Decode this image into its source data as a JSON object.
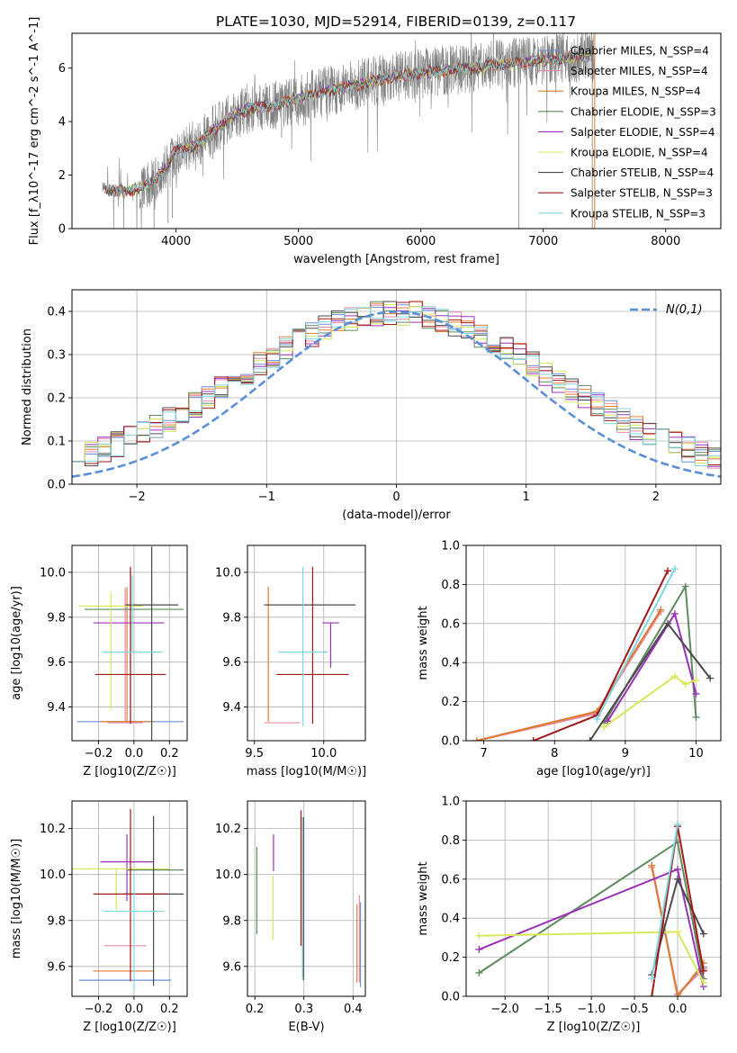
{
  "figure_title": "PLATE=1030, MJD=52914, FIBERID=0139, z=0.117",
  "colors": {
    "Chabrier MILES": "#6a8fdc",
    "Salpeter MILES": "#e88aa8",
    "Kroupa MILES": "#e07b2c",
    "Chabrier ELODIE": "#5e8a5e",
    "Salpeter ELODIE": "#9b30b8",
    "Kroupa ELODIE": "#d6e85a",
    "Chabrier STELIB": "#4a4a4a",
    "Salpeter STELIB": "#a01818",
    "Kroupa STELIB": "#7ed6e0",
    "data": "#808080",
    "normal": "#5b8fd8",
    "grid": "#b0b0b0"
  },
  "chart_data": [
    {
      "id": "spectrum",
      "type": "line",
      "title": "PLATE=1030, MJD=52914, FIBERID=0139, z=0.117",
      "xlabel": "wavelength [Angstrom, rest frame]",
      "ylabel": "Flux [f_λ10^-17 erg cm^-2 s^-1 A^-1]",
      "xlim": [
        3150,
        8450
      ],
      "ylim": [
        0,
        7.3
      ],
      "xticks": [
        4000,
        5000,
        6000,
        7000,
        8000
      ],
      "yticks": [
        0,
        2,
        4,
        6
      ],
      "grid": false,
      "legend_position": "lower-right",
      "data_envelope": {
        "x": [
          3400,
          3500,
          3600,
          3700,
          3800,
          3900,
          4000,
          4100,
          4200,
          4300,
          4400,
          4500,
          4600,
          4800,
          5000,
          5200,
          5400,
          5600,
          5800,
          6000,
          6200,
          6400,
          6600,
          6800,
          7000,
          7200,
          7400
        ],
        "y": [
          1.5,
          1.4,
          1.4,
          1.5,
          1.7,
          2.2,
          2.9,
          3.0,
          3.2,
          3.7,
          4.0,
          4.3,
          4.5,
          4.6,
          4.9,
          5.1,
          5.3,
          5.5,
          5.7,
          5.8,
          5.9,
          6.0,
          6.1,
          6.2,
          6.3,
          6.4,
          6.4
        ]
      },
      "legend": [
        {
          "name": "Chabrier MILES, N_SSP=4"
        },
        {
          "name": "Salpeter MILES, N_SSP=4"
        },
        {
          "name": "Kroupa MILES, N_SSP=4"
        },
        {
          "name": "Chabrier ELODIE, N_SSP=3"
        },
        {
          "name": "Salpeter ELODIE, N_SSP=4"
        },
        {
          "name": "Kroupa ELODIE, N_SSP=4"
        },
        {
          "name": "Chabrier STELIB, N_SSP=4"
        },
        {
          "name": "Salpeter STELIB, N_SSP=3"
        },
        {
          "name": "Kroupa STELIB, N_SSP=3"
        }
      ]
    },
    {
      "id": "residuals",
      "type": "area",
      "xlabel": "(data-model)/error",
      "ylabel": "Normed distribution",
      "xlim": [
        -2.5,
        2.5
      ],
      "ylim": [
        0,
        0.45
      ],
      "xticks": [
        -2,
        -1,
        0,
        1,
        2
      ],
      "yticks": [
        0.0,
        0.1,
        0.2,
        0.3,
        0.4
      ],
      "grid": true,
      "legend": "N(0,1)",
      "legend_position": "top-right",
      "bin_width": 0.1
    },
    {
      "id": "age-vs-Z",
      "type": "scatter",
      "xlabel": "Z [log10(Z/Z☉)]",
      "ylabel": "age [log10(age/yr)]",
      "xlim": [
        -0.35,
        0.3
      ],
      "ylim": [
        9.25,
        10.12
      ],
      "xticks": [
        -0.2,
        0.0,
        0.2
      ],
      "yticks": [
        9.4,
        9.6,
        9.8,
        10.0
      ],
      "grid": true,
      "points": [
        {
          "model": "Chabrier MILES",
          "x": -0.02,
          "y": 9.335,
          "xerr": 0.3,
          "yerr_lo": 0.0,
          "yerr_hi": 0.67
        },
        {
          "model": "Salpeter MILES",
          "x": -0.05,
          "y": 9.33,
          "xerr": 0.1,
          "yerr_lo": 0.0,
          "yerr_hi": 0.6
        },
        {
          "model": "Kroupa MILES",
          "x": -0.04,
          "y": 9.335,
          "xerr": 0.15,
          "yerr_lo": 0.0,
          "yerr_hi": 0.6
        },
        {
          "model": "Chabrier ELODIE",
          "x": 0.0,
          "y": 9.835,
          "xerr": 0.28,
          "yerr_lo": 0.0,
          "yerr_hi": 0.0
        },
        {
          "model": "Salpeter ELODIE",
          "x": -0.03,
          "y": 9.775,
          "xerr": 0.2,
          "yerr_lo": 0.0,
          "yerr_hi": 0.0
        },
        {
          "model": "Kroupa ELODIE",
          "x": -0.13,
          "y": 9.85,
          "xerr": 0.18,
          "yerr_lo": 0.46,
          "yerr_hi": 0.06
        },
        {
          "model": "Chabrier STELIB",
          "x": 0.1,
          "y": 9.855,
          "xerr": 0.15,
          "yerr_lo": 0.65,
          "yerr_hi": 0.26
        },
        {
          "model": "Salpeter STELIB",
          "x": -0.02,
          "y": 9.545,
          "xerr": 0.2,
          "yerr_lo": 0.22,
          "yerr_hi": 0.48
        },
        {
          "model": "Kroupa STELIB",
          "x": -0.01,
          "y": 9.645,
          "xerr": 0.17,
          "yerr_lo": 0.0,
          "yerr_hi": 0.34
        }
      ]
    },
    {
      "id": "age-vs-mass",
      "type": "scatter",
      "xlabel": "mass [log10(M/M☉)]",
      "ylabel": "",
      "xlim": [
        9.45,
        10.3
      ],
      "ylim": [
        9.25,
        10.12
      ],
      "xticks": [
        9.5,
        10.0
      ],
      "yticks": [
        9.4,
        9.6,
        9.8,
        10.0
      ],
      "grid": true,
      "points": [
        {
          "model": "Chabrier MILES",
          "x": 9.55,
          "y": 9.335,
          "xerr": 0.0,
          "yerr_lo": 0.0,
          "yerr_hi": 0.0
        },
        {
          "model": "Salpeter MILES",
          "x": 9.7,
          "y": 9.33,
          "xerr": 0.13,
          "yerr_lo": 0.0,
          "yerr_hi": 0.0
        },
        {
          "model": "Kroupa MILES",
          "x": 9.6,
          "y": 9.335,
          "xerr": 0.0,
          "yerr_lo": 0.0,
          "yerr_hi": 0.6
        },
        {
          "model": "Chabrier ELODIE",
          "x": 10.05,
          "y": 9.835,
          "xerr": 0.0,
          "yerr_lo": 0.0,
          "yerr_hi": 0.0
        },
        {
          "model": "Salpeter ELODIE",
          "x": 10.05,
          "y": 9.775,
          "xerr": 0.06,
          "yerr_lo": 0.2,
          "yerr_hi": 0.0
        },
        {
          "model": "Kroupa ELODIE",
          "x": 10.02,
          "y": 9.85,
          "xerr": 0.0,
          "yerr_lo": 0.0,
          "yerr_hi": 0.0
        },
        {
          "model": "Chabrier STELIB",
          "x": 9.9,
          "y": 9.855,
          "xerr": 0.33,
          "yerr_lo": 0.0,
          "yerr_hi": 0.0
        },
        {
          "model": "Salpeter STELIB",
          "x": 9.92,
          "y": 9.545,
          "xerr": 0.26,
          "yerr_lo": 0.22,
          "yerr_hi": 0.48
        },
        {
          "model": "Kroupa STELIB",
          "x": 9.85,
          "y": 9.645,
          "xerr": 0.18,
          "yerr_lo": 0.33,
          "yerr_hi": 0.38
        }
      ]
    },
    {
      "id": "weight-vs-age",
      "type": "line",
      "xlabel": "age [log10(age/yr)]",
      "ylabel": "mass weight",
      "xlim": [
        6.75,
        10.35
      ],
      "ylim": [
        0.0,
        1.0
      ],
      "xticks": [
        7,
        8,
        9,
        10
      ],
      "yticks": [
        0.0,
        0.2,
        0.4,
        0.6,
        0.8,
        1.0
      ],
      "grid": true,
      "series": [
        {
          "model": "Chabrier MILES",
          "x": [
            6.9,
            8.6,
            9.5
          ],
          "y": [
            0.0,
            0.15,
            0.67
          ]
        },
        {
          "model": "Salpeter MILES",
          "x": [
            6.9,
            8.6,
            9.5
          ],
          "y": [
            0.0,
            0.14,
            0.66
          ]
        },
        {
          "model": "Kroupa MILES",
          "x": [
            6.9,
            8.6,
            9.5
          ],
          "y": [
            0.0,
            0.15,
            0.67
          ]
        },
        {
          "model": "Chabrier ELODIE",
          "x": [
            8.7,
            9.85,
            10.0
          ],
          "y": [
            0.09,
            0.79,
            0.12
          ]
        },
        {
          "model": "Salpeter ELODIE",
          "x": [
            8.75,
            9.7,
            10.0
          ],
          "y": [
            0.1,
            0.65,
            0.24
          ]
        },
        {
          "model": "Kroupa ELODIE",
          "x": [
            8.7,
            9.7,
            9.85,
            10.0
          ],
          "y": [
            0.07,
            0.33,
            0.29,
            0.31
          ]
        },
        {
          "model": "Chabrier STELIB",
          "x": [
            8.5,
            9.6,
            10.2
          ],
          "y": [
            0.0,
            0.6,
            0.32
          ]
        },
        {
          "model": "Salpeter STELIB",
          "x": [
            7.7,
            8.6,
            9.6
          ],
          "y": [
            0.0,
            0.13,
            0.87
          ]
        },
        {
          "model": "Kroupa STELIB",
          "x": [
            8.6,
            9.7
          ],
          "y": [
            0.11,
            0.88
          ]
        }
      ]
    },
    {
      "id": "mass-vs-Z",
      "type": "scatter",
      "xlabel": "Z [log10(Z/Z☉)]",
      "ylabel": "mass [log10(M/M☉)]",
      "xlim": [
        -0.35,
        0.3
      ],
      "ylim": [
        9.47,
        10.32
      ],
      "xticks": [
        -0.2,
        0.0,
        0.2
      ],
      "yticks": [
        9.6,
        9.8,
        10.0,
        10.2
      ],
      "grid": true,
      "points": [
        {
          "model": "Chabrier MILES",
          "x": -0.05,
          "y": 9.54,
          "xerr": 0.26,
          "yerr_lo": 0.0,
          "yerr_hi": 0.0
        },
        {
          "model": "Salpeter MILES",
          "x": -0.05,
          "y": 9.69,
          "xerr": 0.12,
          "yerr_lo": 0.0,
          "yerr_hi": 0.0
        },
        {
          "model": "Kroupa MILES",
          "x": -0.06,
          "y": 9.58,
          "xerr": 0.17,
          "yerr_lo": 0.0,
          "yerr_hi": 0.0
        },
        {
          "model": "Chabrier ELODIE",
          "x": 0.12,
          "y": 10.02,
          "xerr": 0.16,
          "yerr_lo": 0.0,
          "yerr_hi": 0.0
        },
        {
          "model": "Salpeter ELODIE",
          "x": -0.04,
          "y": 10.055,
          "xerr": 0.15,
          "yerr_lo": 0.17,
          "yerr_hi": 0.12
        },
        {
          "model": "Kroupa ELODIE",
          "x": -0.1,
          "y": 10.025,
          "xerr": 0.3,
          "yerr_lo": 0.18,
          "yerr_hi": 0.0
        },
        {
          "model": "Chabrier STELIB",
          "x": 0.11,
          "y": 9.915,
          "xerr": 0.17,
          "yerr_lo": 0.4,
          "yerr_hi": 0.34
        },
        {
          "model": "Salpeter STELIB",
          "x": -0.02,
          "y": 9.915,
          "xerr": 0.21,
          "yerr_lo": 0.38,
          "yerr_hi": 0.37
        },
        {
          "model": "Kroupa STELIB",
          "x": 0.0,
          "y": 9.84,
          "xerr": 0.17,
          "yerr_lo": 0.34,
          "yerr_hi": 0.16
        }
      ]
    },
    {
      "id": "mass-vs-ebv",
      "type": "scatter",
      "xlabel": "E(B-V)",
      "ylabel": "",
      "xlim": [
        0.185,
        0.425
      ],
      "ylim": [
        9.47,
        10.32
      ],
      "xticks": [
        0.2,
        0.3,
        0.4
      ],
      "yticks": [
        9.6,
        9.8,
        10.0,
        10.2
      ],
      "grid": true,
      "points": [
        {
          "model": "Chabrier MILES",
          "x": 0.415,
          "y": 9.71,
          "xerr": 0.0,
          "yerr_lo": 0.2,
          "yerr_hi": 0.17
        },
        {
          "model": "Salpeter MILES",
          "x": 0.413,
          "y": 9.71,
          "xerr": 0.0,
          "yerr_lo": 0.18,
          "yerr_hi": 0.2
        },
        {
          "model": "Kroupa MILES",
          "x": 0.408,
          "y": 9.71,
          "xerr": 0.0,
          "yerr_lo": 0.18,
          "yerr_hi": 0.16
        },
        {
          "model": "Chabrier ELODIE",
          "x": 0.204,
          "y": 9.93,
          "xerr": 0.0,
          "yerr_lo": 0.19,
          "yerr_hi": 0.19
        },
        {
          "model": "Salpeter ELODIE",
          "x": 0.238,
          "y": 10.065,
          "xerr": 0.0,
          "yerr_lo": 0.05,
          "yerr_hi": 0.11
        },
        {
          "model": "Kroupa ELODIE",
          "x": 0.237,
          "y": 9.885,
          "xerr": 0.0,
          "yerr_lo": 0.17,
          "yerr_hi": 0.11
        },
        {
          "model": "Chabrier STELIB",
          "x": 0.299,
          "y": 9.9,
          "xerr": 0.0,
          "yerr_lo": 0.36,
          "yerr_hi": 0.35
        },
        {
          "model": "Salpeter STELIB",
          "x": 0.294,
          "y": 9.98,
          "xerr": 0.0,
          "yerr_lo": 0.29,
          "yerr_hi": 0.3
        },
        {
          "model": "Kroupa STELIB",
          "x": 0.297,
          "y": 9.85,
          "xerr": 0.0,
          "yerr_lo": 0.3,
          "yerr_hi": 0.4
        }
      ]
    },
    {
      "id": "weight-vs-Z",
      "type": "line",
      "xlabel": "Z [log10(Z/Z☉)]",
      "ylabel": "mass weight",
      "xlim": [
        -2.45,
        0.5
      ],
      "ylim": [
        0.0,
        1.0
      ],
      "xticks": [
        -2.0,
        -1.5,
        -1.0,
        -0.5,
        0.0
      ],
      "yticks": [
        0.0,
        0.2,
        0.4,
        0.6,
        0.8,
        1.0
      ],
      "grid": true,
      "series": [
        {
          "model": "Chabrier MILES",
          "x": [
            -0.3,
            0.0,
            0.3
          ],
          "y": [
            0.67,
            0.01,
            0.15
          ]
        },
        {
          "model": "Salpeter MILES",
          "x": [
            -0.3,
            0.0,
            0.3
          ],
          "y": [
            0.66,
            0.01,
            0.14
          ]
        },
        {
          "model": "Kroupa MILES",
          "x": [
            -0.3,
            0.0,
            0.3
          ],
          "y": [
            0.67,
            0.0,
            0.17
          ]
        },
        {
          "model": "Chabrier ELODIE",
          "x": [
            -2.3,
            0.0,
            0.3
          ],
          "y": [
            0.12,
            0.79,
            0.09
          ]
        },
        {
          "model": "Salpeter ELODIE",
          "x": [
            -2.3,
            0.0,
            0.3
          ],
          "y": [
            0.24,
            0.65,
            0.05
          ]
        },
        {
          "model": "Kroupa ELODIE",
          "x": [
            -2.3,
            0.0,
            0.3
          ],
          "y": [
            0.31,
            0.33,
            0.07
          ]
        },
        {
          "model": "Chabrier STELIB",
          "x": [
            -0.3,
            0.0,
            0.3
          ],
          "y": [
            0.11,
            0.6,
            0.32
          ]
        },
        {
          "model": "Salpeter STELIB",
          "x": [
            -0.3,
            0.0,
            0.3
          ],
          "y": [
            0.0,
            0.87,
            0.13
          ]
        },
        {
          "model": "Kroupa STELIB",
          "x": [
            -0.3,
            0.0
          ],
          "y": [
            0.09,
            0.88
          ]
        }
      ]
    }
  ]
}
